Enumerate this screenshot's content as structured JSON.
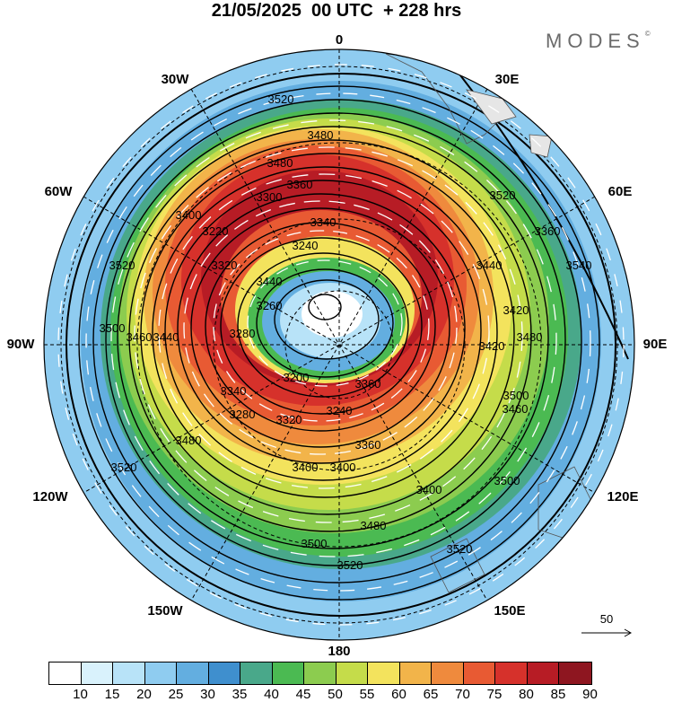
{
  "title": "21/05/2025  00 UTC  + 228 hrs",
  "brand": "MODES",
  "brand_mark": "©",
  "longitude_labels": {
    "n": "0",
    "s": "180",
    "e": "90E",
    "w": "90W",
    "e30": "30E",
    "e60": "60E",
    "e120": "120E",
    "e150": "150E",
    "w30": "30W",
    "w60": "60W",
    "w120": "120W",
    "w150": "150W"
  },
  "contour_labels": [
    "3520",
    "3480",
    "3480",
    "3520",
    "3540",
    "3520",
    "3500",
    "3460",
    "3440",
    "3420",
    "3400",
    "3360",
    "3340",
    "3320",
    "3280",
    "3240",
    "3220",
    "3200",
    "3260",
    "3300",
    "3360",
    "3400",
    "3440",
    "3480",
    "3500",
    "3520",
    "3400",
    "3400",
    "3360",
    "3320",
    "3340",
    "3280",
    "3240",
    "3460",
    "3480",
    "3500",
    "3520",
    "3360",
    "3420",
    "3440",
    "3480",
    "3520",
    "3500"
  ],
  "colorbar": {
    "colors": [
      "#ffffff",
      "#d9f2fc",
      "#b8e3f8",
      "#8fccf0",
      "#63aee0",
      "#3f8fce",
      "#49a88a",
      "#4bba52",
      "#8ccc4f",
      "#c5dc4a",
      "#f3e35d",
      "#f2b44a",
      "#ef8a3d",
      "#e85a33",
      "#d6312b",
      "#b71c25",
      "#8e1620"
    ],
    "ticks": [
      "10",
      "15",
      "20",
      "25",
      "30",
      "35",
      "40",
      "45",
      "50",
      "55",
      "60",
      "65",
      "70",
      "75",
      "80",
      "85",
      "90"
    ]
  },
  "vector_reference": "50"
}
